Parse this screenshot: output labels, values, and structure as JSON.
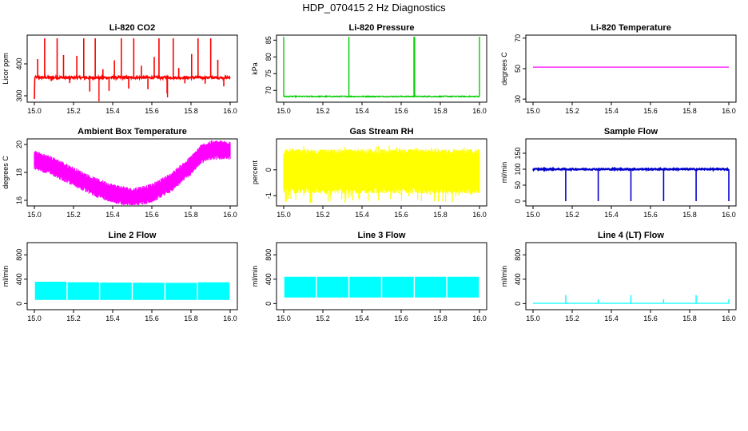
{
  "title": "HDP_070415  2 Hz Diagnostics",
  "chart_data": [
    {
      "type": "line",
      "title": "Li-820 CO2",
      "ylabel": "Licor ppm",
      "color": "#ff0000",
      "xlim": [
        15.0,
        16.0
      ],
      "ylim": [
        280,
        490
      ],
      "xticks": [
        "15.0",
        "15.2",
        "15.4",
        "15.6",
        "15.8",
        "16.0"
      ],
      "yticks": [
        "300",
        "400"
      ],
      "series": [
        {
          "name": "CO2",
          "baseline": 357,
          "noise": 4,
          "spike_top": 480,
          "spike_bottom": 290
        }
      ]
    },
    {
      "type": "line",
      "title": "Li-820 Pressure",
      "ylabel": "kPa",
      "color": "#00cc00",
      "xlim": [
        15.0,
        16.0
      ],
      "ylim": [
        66.5,
        86.5
      ],
      "xticks": [
        "15.0",
        "15.2",
        "15.4",
        "15.6",
        "15.8",
        "16.0"
      ],
      "yticks": [
        "70",
        "75",
        "80",
        "85"
      ],
      "series": [
        {
          "name": "Pressure",
          "baseline": 68.2,
          "noise": 0.15,
          "spike_x": [
            15.0,
            15.333,
            15.667,
            16.0
          ],
          "spike_top": 86.5
        }
      ]
    },
    {
      "type": "line",
      "title": "Li-820 Temperature",
      "ylabel": "degrees C",
      "color": "#ff00ff",
      "xlim": [
        15.0,
        16.0
      ],
      "ylim": [
        28,
        72
      ],
      "xticks": [
        "15.0",
        "15.2",
        "15.4",
        "15.6",
        "15.8",
        "16.0"
      ],
      "yticks": [
        "30",
        "50",
        "70"
      ],
      "series": [
        {
          "name": "Temperature",
          "value": 51
        }
      ]
    },
    {
      "type": "area",
      "title": "Ambient Box Temperature",
      "ylabel": "degrees C",
      "color": "#ff00ff",
      "xlim": [
        15.0,
        16.0
      ],
      "ylim": [
        15.6,
        20.4
      ],
      "xticks": [
        "15.0",
        "15.2",
        "15.4",
        "15.6",
        "15.8",
        "16.0"
      ],
      "yticks": [
        "16",
        "18",
        "20"
      ],
      "series": [
        {
          "name": "Ambient",
          "x": [
            15.0,
            15.1,
            15.2,
            15.3,
            15.4,
            15.5,
            15.6,
            15.7,
            15.8,
            15.85,
            15.9,
            16.0
          ],
          "values": [
            18.9,
            18.4,
            17.7,
            17.0,
            16.5,
            16.2,
            16.5,
            17.3,
            18.5,
            19.3,
            19.6,
            19.6
          ],
          "band": 0.8
        }
      ]
    },
    {
      "type": "area",
      "title": "Gas Stream RH",
      "ylabel": "percent",
      "color": "#ffff00",
      "xlim": [
        15.0,
        16.0
      ],
      "ylim": [
        -1.4,
        1.2
      ],
      "xticks": [
        "15.0",
        "15.2",
        "15.4",
        "15.6",
        "15.8",
        "16.0"
      ],
      "yticks": [
        "-1",
        "0"
      ],
      "series": [
        {
          "name": "RH",
          "low": -0.8,
          "high": 0.7,
          "spike_low": -1.3,
          "spike_high": 0.95
        }
      ]
    },
    {
      "type": "line",
      "title": "Sample Flow",
      "ylabel": "ml/min",
      "color": "#0000cc",
      "xlim": [
        15.0,
        16.0
      ],
      "ylim": [
        -15,
        195
      ],
      "xticks": [
        "15.0",
        "15.2",
        "15.4",
        "15.6",
        "15.8",
        "16.0"
      ],
      "yticks": [
        "0",
        "50",
        "100",
        "150"
      ],
      "series": [
        {
          "name": "Flow",
          "baseline": 100,
          "noise": 2,
          "drop_x": [
            15.167,
            15.333,
            15.5,
            15.667,
            15.833,
            16.0
          ],
          "drop_to": 0
        }
      ]
    },
    {
      "type": "area",
      "title": "Line 2 Flow",
      "ylabel": "ml/min",
      "color": "#00ffff",
      "xlim": [
        15.0,
        16.0
      ],
      "ylim": [
        -100,
        1000
      ],
      "xticks": [
        "15.0",
        "15.2",
        "15.4",
        "15.6",
        "15.8",
        "16.0"
      ],
      "yticks": [
        "0",
        "400",
        "800"
      ],
      "series": [
        {
          "name": "Line 2",
          "low": 60,
          "high": 350,
          "gap_x": [
            15.167,
            15.333,
            15.5,
            15.667,
            15.833
          ]
        }
      ]
    },
    {
      "type": "area",
      "title": "Line 3 Flow",
      "ylabel": "ml/min",
      "color": "#00ffff",
      "xlim": [
        15.0,
        16.0
      ],
      "ylim": [
        -100,
        1000
      ],
      "xticks": [
        "15.0",
        "15.2",
        "15.4",
        "15.6",
        "15.8",
        "16.0"
      ],
      "yticks": [
        "0",
        "400",
        "800"
      ],
      "series": [
        {
          "name": "Line 3",
          "low": 100,
          "high": 440,
          "gap_x": [
            15.167,
            15.333,
            15.5,
            15.667,
            15.833
          ]
        }
      ]
    },
    {
      "type": "line",
      "title": "Line 4 (LT) Flow",
      "ylabel": "ml/min",
      "color": "#00ffff",
      "xlim": [
        15.0,
        16.0
      ],
      "ylim": [
        -100,
        1000
      ],
      "xticks": [
        "15.0",
        "15.2",
        "15.4",
        "15.6",
        "15.8",
        "16.0"
      ],
      "yticks": [
        "0",
        "400",
        "800"
      ],
      "series": [
        {
          "name": "Line 4",
          "baseline": 5,
          "spike_x": [
            15.167,
            15.333,
            15.5,
            15.667,
            15.833,
            16.0
          ],
          "spike_values": [
            140,
            70,
            140,
            70,
            140,
            70
          ]
        }
      ]
    }
  ]
}
